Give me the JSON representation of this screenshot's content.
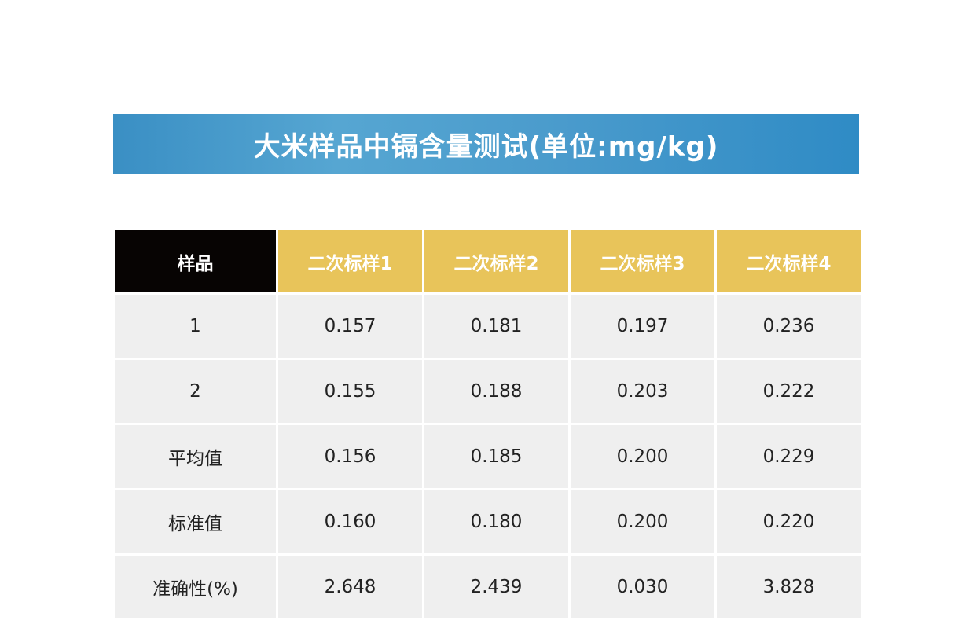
{
  "title": "大米样品中镉含量测试(单位:mg/kg)",
  "colors": {
    "banner": "#3a8fc4",
    "header_black": "#070403",
    "header_gold": "#e8c45a",
    "cell": "#efefef"
  },
  "table": {
    "headers": [
      "样品",
      "二次标样1",
      "二次标样2",
      "二次标样3",
      "二次标样4"
    ],
    "rows": [
      [
        "1",
        "0.157",
        "0.181",
        "0.197",
        "0.236"
      ],
      [
        "2",
        "0.155",
        "0.188",
        "0.203",
        "0.222"
      ],
      [
        "平均值",
        "0.156",
        "0.185",
        "0.200",
        "0.229"
      ],
      [
        "标准值",
        "0.160",
        "0.180",
        "0.200",
        "0.220"
      ],
      [
        "准确性(%)",
        "2.648",
        "2.439",
        "0.030",
        "3.828"
      ]
    ]
  }
}
